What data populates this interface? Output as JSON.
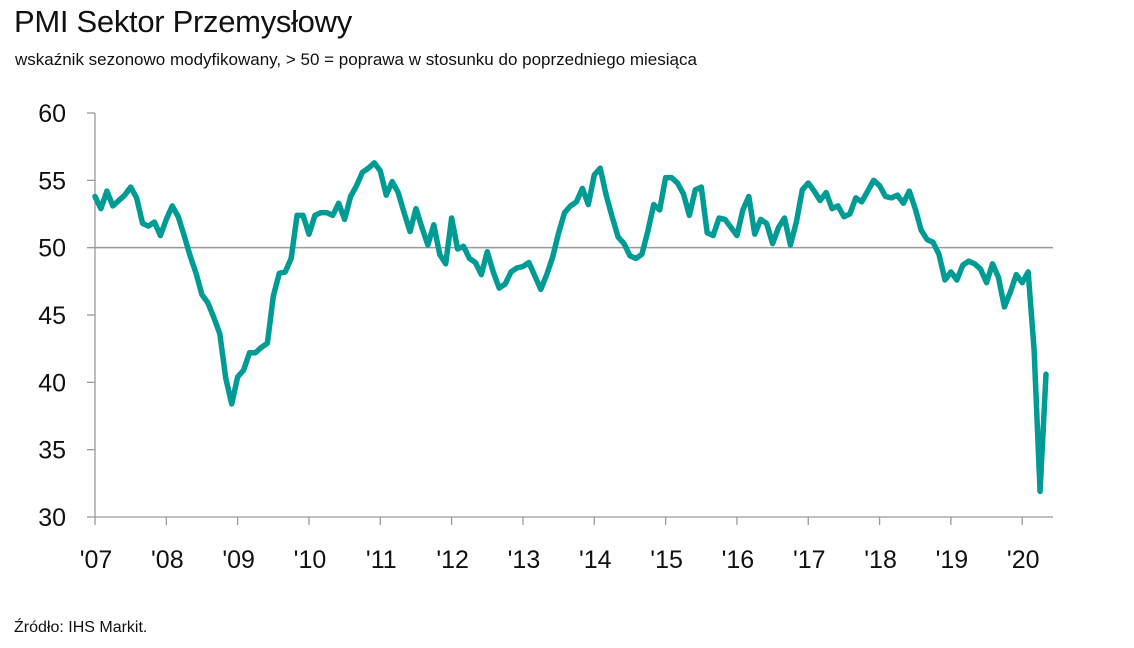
{
  "chart_data": {
    "type": "line",
    "title": "PMI Sektor Przemysłowy",
    "subtitle": "wskaźnik sezonowo modyfikowany, > 50 = poprawa w stosunku do poprzedniego miesiąca",
    "source": "Źródło:  IHS Markit.",
    "xlabel": "",
    "ylabel": "",
    "ylim": [
      30,
      60
    ],
    "yticks": [
      "60",
      "55",
      "50",
      "45",
      "40",
      "35",
      "30"
    ],
    "xticks": [
      "'07",
      "'08",
      "'09",
      "'10",
      "'11",
      "'12",
      "'13",
      "'14",
      "'15",
      "'16",
      "'17",
      "'18",
      "'19",
      "'20"
    ],
    "xrange": [
      "2007-01",
      "2020-05"
    ],
    "reference_line": 50,
    "grid": false,
    "line_color": "#009b94",
    "axis_color": "#999999",
    "series": [
      {
        "x": [
          "2007-01",
          "2007-02",
          "2007-03",
          "2007-04",
          "2007-05",
          "2007-06",
          "2007-07",
          "2007-08",
          "2007-09",
          "2007-10",
          "2007-11",
          "2007-12",
          "2008-01",
          "2008-02",
          "2008-03",
          "2008-04",
          "2008-05",
          "2008-06",
          "2008-07",
          "2008-08",
          "2008-09",
          "2008-10",
          "2008-11",
          "2008-12",
          "2009-01",
          "2009-02",
          "2009-03",
          "2009-04",
          "2009-05",
          "2009-06",
          "2009-07",
          "2009-08",
          "2009-09",
          "2009-10",
          "2009-11",
          "2009-12",
          "2010-01",
          "2010-02",
          "2010-03",
          "2010-04",
          "2010-05",
          "2010-06",
          "2010-07",
          "2010-08",
          "2010-09",
          "2010-10",
          "2010-11",
          "2010-12",
          "2011-01",
          "2011-02",
          "2011-03",
          "2011-04",
          "2011-05",
          "2011-06",
          "2011-07",
          "2011-08",
          "2011-09",
          "2011-10",
          "2011-11",
          "2011-12",
          "2012-01",
          "2012-02",
          "2012-03",
          "2012-04",
          "2012-05",
          "2012-06",
          "2012-07",
          "2012-08",
          "2012-09",
          "2012-10",
          "2012-11",
          "2012-12",
          "2013-01",
          "2013-02",
          "2013-03",
          "2013-04",
          "2013-05",
          "2013-06",
          "2013-07",
          "2013-08",
          "2013-09",
          "2013-10",
          "2013-11",
          "2013-12",
          "2014-01",
          "2014-02",
          "2014-03",
          "2014-04",
          "2014-05",
          "2014-06",
          "2014-07",
          "2014-08",
          "2014-09",
          "2014-10",
          "2014-11",
          "2014-12",
          "2015-01",
          "2015-02",
          "2015-03",
          "2015-04",
          "2015-05",
          "2015-06",
          "2015-07",
          "2015-08",
          "2015-09",
          "2015-10",
          "2015-11",
          "2015-12",
          "2016-01",
          "2016-02",
          "2016-03",
          "2016-04",
          "2016-05",
          "2016-06",
          "2016-07",
          "2016-08",
          "2016-09",
          "2016-10",
          "2016-11",
          "2016-12",
          "2017-01",
          "2017-02",
          "2017-03",
          "2017-04",
          "2017-05",
          "2017-06",
          "2017-07",
          "2017-08",
          "2017-09",
          "2017-10",
          "2017-11",
          "2017-12",
          "2018-01",
          "2018-02",
          "2018-03",
          "2018-04",
          "2018-05",
          "2018-06",
          "2018-07",
          "2018-08",
          "2018-09",
          "2018-10",
          "2018-11",
          "2018-12",
          "2019-01",
          "2019-02",
          "2019-03",
          "2019-04",
          "2019-05",
          "2019-06",
          "2019-07",
          "2019-08",
          "2019-09",
          "2019-10",
          "2019-11",
          "2019-12",
          "2020-01",
          "2020-02",
          "2020-03",
          "2020-04",
          "2020-05"
        ],
        "values": [
          53.8,
          52.9,
          54.2,
          53.1,
          53.5,
          53.9,
          54.5,
          53.7,
          51.8,
          51.6,
          51.9,
          50.9,
          52.1,
          53.1,
          52.3,
          50.9,
          49.4,
          48.1,
          46.5,
          45.9,
          44.8,
          43.6,
          40.3,
          38.4,
          40.4,
          40.9,
          42.2,
          42.2,
          42.6,
          42.9,
          46.4,
          48.1,
          48.2,
          49.2,
          52.4,
          52.4,
          51.0,
          52.4,
          52.6,
          52.6,
          52.4,
          53.3,
          52.1,
          53.8,
          54.6,
          55.6,
          55.9,
          56.3,
          55.7,
          53.9,
          54.9,
          54.1,
          52.6,
          51.2,
          52.9,
          51.5,
          50.2,
          51.7,
          49.5,
          48.8,
          52.2,
          49.9,
          50.1,
          49.2,
          48.9,
          48.0,
          49.7,
          48.2,
          47.0,
          47.3,
          48.2,
          48.5,
          48.6,
          48.9,
          47.9,
          46.9,
          48.0,
          49.3,
          51.1,
          52.6,
          53.1,
          53.4,
          54.4,
          53.2,
          55.4,
          55.9,
          53.9,
          52.3,
          50.8,
          50.3,
          49.4,
          49.2,
          49.5,
          51.2,
          53.2,
          52.8,
          55.2,
          55.2,
          54.8,
          54.0,
          52.4,
          54.3,
          54.5,
          51.1,
          50.9,
          52.2,
          52.1,
          51.5,
          50.9,
          52.8,
          53.8,
          51.0,
          52.1,
          51.8,
          50.3,
          51.5,
          52.2,
          50.2,
          51.9,
          54.3,
          54.8,
          54.2,
          53.5,
          54.1,
          52.9,
          53.1,
          52.3,
          52.5,
          53.7,
          53.4,
          54.2,
          55.0,
          54.6,
          53.8,
          53.7,
          53.9,
          53.3,
          54.2,
          52.9,
          51.3,
          50.6,
          50.4,
          49.5,
          47.6,
          48.2,
          47.6,
          48.7,
          49.0,
          48.8,
          48.4,
          47.4,
          48.8,
          47.8,
          45.6,
          46.7,
          48.0,
          47.4,
          48.2,
          42.4,
          31.9,
          40.6
        ]
      }
    ]
  }
}
